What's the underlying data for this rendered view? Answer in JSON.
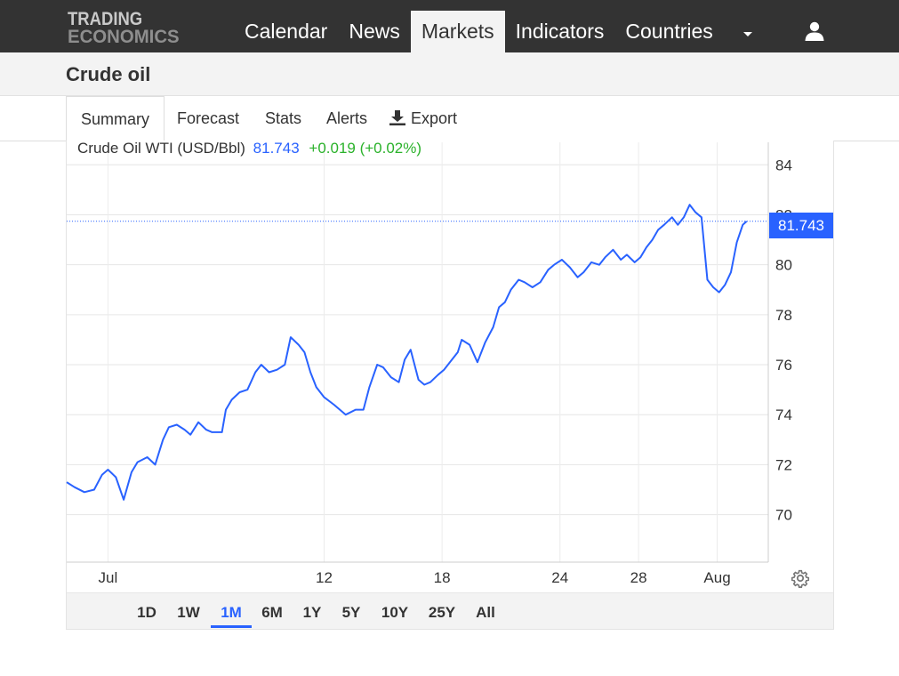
{
  "brand": {
    "line1": "TRADING",
    "line2": "ECONOMICS"
  },
  "nav": {
    "items": [
      {
        "label": "Calendar"
      },
      {
        "label": "News"
      },
      {
        "label": "Markets"
      },
      {
        "label": "Indicators"
      },
      {
        "label": "Countries"
      }
    ],
    "active": "Markets"
  },
  "page": {
    "title": "Crude oil"
  },
  "tabs": {
    "summary": "Summary",
    "forecast": "Forecast",
    "stats": "Stats",
    "alerts": "Alerts",
    "export": "Export"
  },
  "quote": {
    "name": "Crude Oil WTI (USD/Bbl)",
    "price": "81.743",
    "change": "+0.019 (+0.02%)"
  },
  "ranges": [
    "1D",
    "1W",
    "1M",
    "6M",
    "1Y",
    "5Y",
    "10Y",
    "25Y",
    "All"
  ],
  "active_range": "1M",
  "colors": {
    "line": "#2962ff",
    "change_positive": "#2bb22b",
    "navbar": "#333333"
  },
  "icons": [
    "export-icon",
    "user-icon",
    "caret-down-icon",
    "gear-icon"
  ],
  "chart_data": {
    "type": "line",
    "title": "Crude Oil WTI (USD/Bbl)",
    "ylim": [
      68.1,
      84.9
    ],
    "yticks": [
      70,
      72,
      74,
      76,
      78,
      80,
      82,
      84
    ],
    "x_tick_labels": [
      {
        "label": "Jul",
        "x": 1.0
      },
      {
        "label": "12",
        "x": 12
      },
      {
        "label": "18",
        "x": 18
      },
      {
        "label": "24",
        "x": 24
      },
      {
        "label": "28",
        "x": 28
      },
      {
        "label": "Aug",
        "x": 32.0
      }
    ],
    "xlim": [
      -1.1,
      34.6
    ],
    "grid": true,
    "last_value": 81.743,
    "series": [
      {
        "values": [
          [
            -1.1,
            71.3
          ],
          [
            -0.7,
            71.1
          ],
          [
            -0.2,
            70.9
          ],
          [
            0.3,
            71.0
          ],
          [
            0.7,
            71.6
          ],
          [
            1.0,
            71.8
          ],
          [
            1.4,
            71.5
          ],
          [
            1.8,
            70.6
          ],
          [
            2.2,
            71.7
          ],
          [
            2.5,
            72.1
          ],
          [
            3.0,
            72.3
          ],
          [
            3.4,
            72.0
          ],
          [
            3.8,
            73.0
          ],
          [
            4.1,
            73.5
          ],
          [
            4.5,
            73.6
          ],
          [
            4.9,
            73.4
          ],
          [
            5.2,
            73.2
          ],
          [
            5.6,
            73.7
          ],
          [
            6.0,
            73.4
          ],
          [
            6.3,
            73.3
          ],
          [
            6.8,
            73.3
          ],
          [
            7.0,
            74.2
          ],
          [
            7.3,
            74.6
          ],
          [
            7.7,
            74.9
          ],
          [
            8.1,
            75.0
          ],
          [
            8.5,
            75.7
          ],
          [
            8.8,
            76.0
          ],
          [
            9.2,
            75.7
          ],
          [
            9.6,
            75.8
          ],
          [
            10.0,
            76.0
          ],
          [
            10.3,
            77.1
          ],
          [
            10.7,
            76.8
          ],
          [
            11.0,
            76.5
          ],
          [
            11.3,
            75.7
          ],
          [
            11.6,
            75.1
          ],
          [
            12.0,
            74.7
          ],
          [
            12.5,
            74.4
          ],
          [
            12.8,
            74.2
          ],
          [
            13.1,
            74.0
          ],
          [
            13.6,
            74.2
          ],
          [
            14.0,
            74.2
          ],
          [
            14.3,
            75.1
          ],
          [
            14.7,
            76.0
          ],
          [
            15.0,
            75.9
          ],
          [
            15.4,
            75.5
          ],
          [
            15.8,
            75.3
          ],
          [
            16.1,
            76.2
          ],
          [
            16.4,
            76.6
          ],
          [
            16.8,
            75.4
          ],
          [
            17.1,
            75.2
          ],
          [
            17.4,
            75.3
          ],
          [
            17.8,
            75.6
          ],
          [
            18.1,
            75.8
          ],
          [
            18.5,
            76.2
          ],
          [
            18.8,
            76.5
          ],
          [
            19.0,
            77.0
          ],
          [
            19.4,
            76.8
          ],
          [
            19.8,
            76.1
          ],
          [
            20.2,
            76.9
          ],
          [
            20.6,
            77.5
          ],
          [
            20.9,
            78.3
          ],
          [
            21.2,
            78.5
          ],
          [
            21.5,
            79.0
          ],
          [
            21.9,
            79.4
          ],
          [
            22.2,
            79.3
          ],
          [
            22.6,
            79.1
          ],
          [
            23.0,
            79.3
          ],
          [
            23.4,
            79.8
          ],
          [
            23.7,
            80.0
          ],
          [
            24.1,
            80.2
          ],
          [
            24.5,
            79.9
          ],
          [
            24.9,
            79.5
          ],
          [
            25.2,
            79.7
          ],
          [
            25.6,
            80.1
          ],
          [
            26.0,
            80.0
          ],
          [
            26.3,
            80.3
          ],
          [
            26.7,
            80.6
          ],
          [
            27.1,
            80.2
          ],
          [
            27.4,
            80.4
          ],
          [
            27.8,
            80.1
          ],
          [
            28.1,
            80.3
          ],
          [
            28.4,
            80.7
          ],
          [
            28.7,
            81.0
          ],
          [
            29.0,
            81.4
          ],
          [
            29.3,
            81.6
          ],
          [
            29.7,
            81.9
          ],
          [
            30.0,
            81.6
          ],
          [
            30.3,
            81.9
          ],
          [
            30.6,
            82.4
          ],
          [
            30.9,
            82.1
          ],
          [
            31.2,
            81.9
          ],
          [
            31.5,
            79.4
          ],
          [
            31.8,
            79.1
          ],
          [
            32.1,
            78.9
          ],
          [
            32.4,
            79.2
          ],
          [
            32.7,
            79.7
          ],
          [
            33.0,
            80.9
          ],
          [
            33.3,
            81.6
          ],
          [
            33.5,
            81.743
          ]
        ]
      }
    ]
  }
}
